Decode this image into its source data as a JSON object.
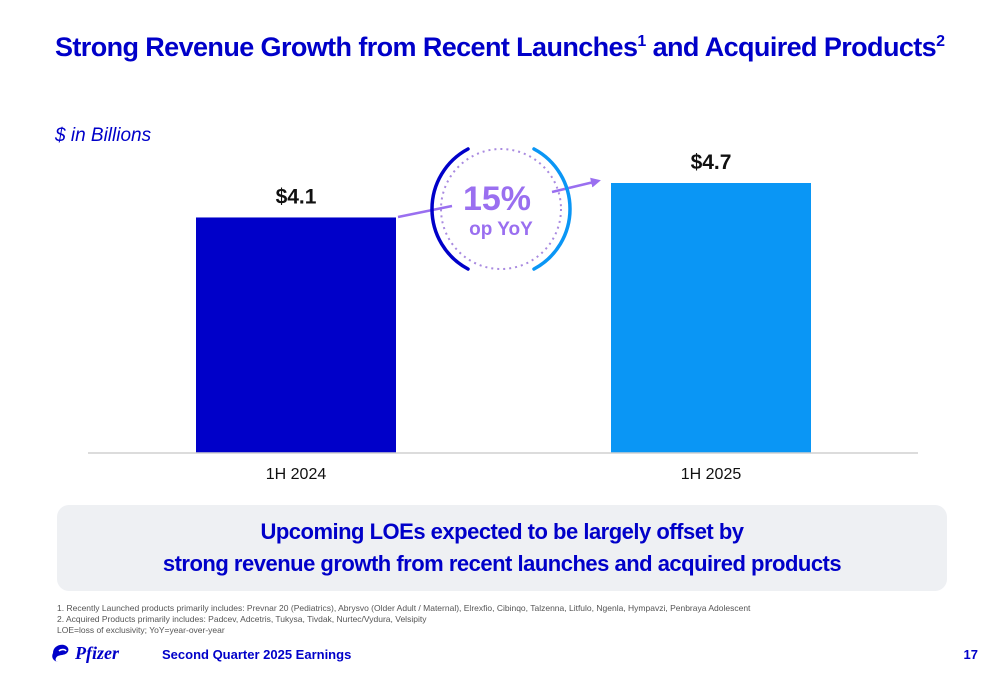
{
  "slide": {
    "title_main": "Strong Revenue Growth from Recent Launches",
    "title_sup1": "1",
    "title_mid": " and Acquired Products",
    "title_sup2": "2",
    "units": "$ in Billions"
  },
  "chart_data": {
    "type": "bar",
    "title": "",
    "xlabel": "",
    "ylabel": "",
    "categories": [
      "1H 2024",
      "1H 2025"
    ],
    "values": [
      4.1,
      4.7
    ],
    "data_labels": [
      "$4.1",
      "$4.7"
    ],
    "colors": [
      "#0000c9",
      "#0a96f5"
    ],
    "ylim": [
      0,
      4.7
    ],
    "grid": false,
    "annotation": {
      "value": "15%",
      "label": "op YoY",
      "color": "#9a6ff0"
    }
  },
  "callout": {
    "line1": "Upcoming LOEs expected to be largely offset by",
    "line2": "strong revenue growth from recent launches and acquired products"
  },
  "footnotes": [
    "1. Recently Launched products primarily includes: Prevnar 20 (Pediatrics), Abrysvo (Older Adult / Maternal), Elrexfio, Cibinqo, Talzenna, Litfulo, Ngenla, Hympavzi, Penbraya Adolescent",
    "2. Acquired Products primarily includes: Padcev, Adcetris, Tukysa, Tivdak, Nurtec/Vydura, Velsipity",
    "LOE=loss of exclusivity; YoY=year-over-year"
  ],
  "footer": {
    "logo_text": "Pfizer",
    "logo_icon": "pfizer-logo-icon",
    "text": "Second Quarter 2025 Earnings",
    "page_number": "17"
  }
}
